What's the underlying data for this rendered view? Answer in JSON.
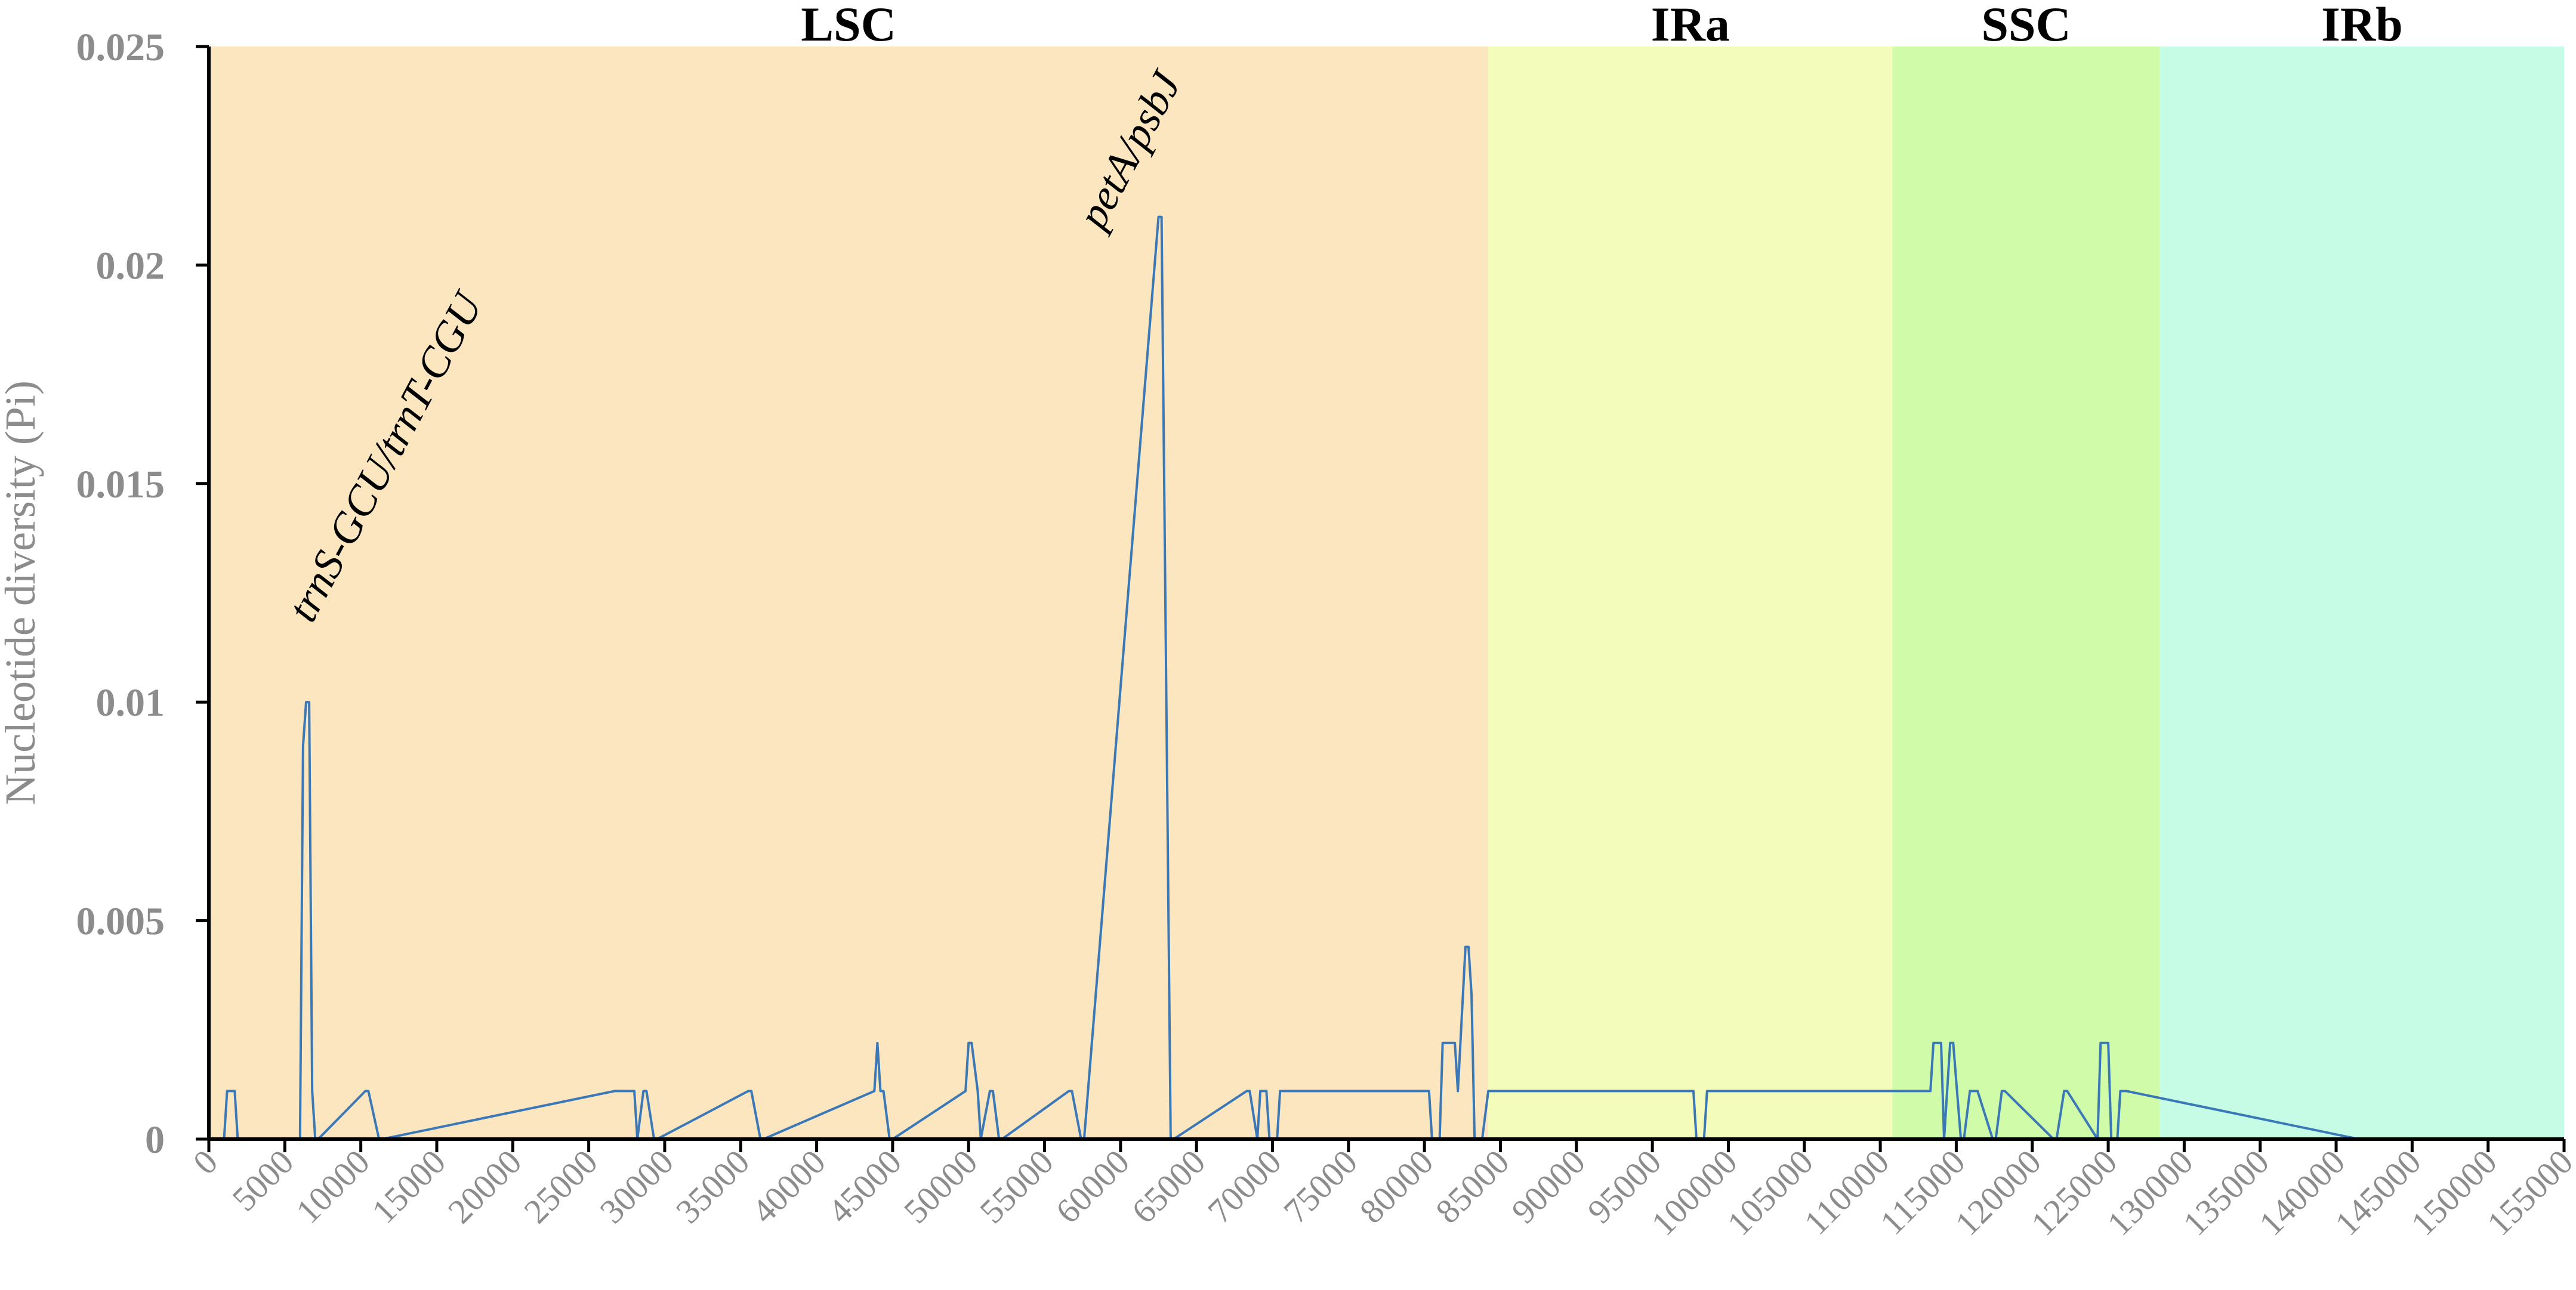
{
  "chart_data": {
    "type": "line",
    "title": "",
    "xlabel": "",
    "ylabel": "Nucleotide diversity (Pi)",
    "xlim": [
      0,
      155000
    ],
    "ylim": [
      0,
      0.025
    ],
    "x_ticks": [
      0,
      5000,
      10000,
      15000,
      20000,
      25000,
      30000,
      35000,
      40000,
      45000,
      50000,
      55000,
      60000,
      65000,
      70000,
      75000,
      80000,
      85000,
      90000,
      95000,
      100000,
      105000,
      110000,
      115000,
      120000,
      125000,
      130000,
      135000,
      140000,
      145000,
      150000,
      155000
    ],
    "y_ticks": [
      0,
      0.005,
      0.01,
      0.015,
      0.02,
      0.025
    ],
    "y_tick_labels": [
      "0",
      "0.005",
      "0.01",
      "0.015",
      "0.02",
      "0.025"
    ],
    "grid": false,
    "regions": [
      {
        "label": "LSC",
        "start": 0,
        "end": 84200,
        "color": "#fce6c0"
      },
      {
        "label": "IRa",
        "start": 84200,
        "end": 110800,
        "color": "#f3fcba"
      },
      {
        "label": "SSC",
        "start": 110800,
        "end": 128400,
        "color": "#d0fcaa"
      },
      {
        "label": "IRb",
        "start": 128400,
        "end": 155000,
        "color": "#c6fce6"
      }
    ],
    "annotations": [
      {
        "text": "trnS-GCU/trnT-CGU",
        "x": 6000,
        "y": 0.0115
      },
      {
        "text": "petA/psbJ",
        "x": 58000,
        "y": 0.0205
      }
    ],
    "series": [
      {
        "color": "#3a78b8",
        "x": [
          0,
          1000,
          1200,
          1700,
          1900,
          6000,
          6200,
          6400,
          6600,
          6800,
          7000,
          7200,
          10300,
          10500,
          11200,
          11400,
          26700,
          26900,
          28000,
          28200,
          28600,
          28800,
          29300,
          29500,
          35500,
          35700,
          36300,
          36500,
          43800,
          44000,
          44200,
          44400,
          44800,
          45000,
          49800,
          50000,
          50200,
          50600,
          50800,
          51400,
          51600,
          52000,
          52200,
          56600,
          56800,
          57400,
          57600,
          62500,
          62700,
          63300,
          63500,
          68300,
          68500,
          69000,
          69200,
          69600,
          69800,
          70300,
          70500,
          80300,
          80500,
          81000,
          81200,
          82000,
          82200,
          82700,
          82900,
          83100,
          83300,
          83600,
          83800,
          84200,
          97700,
          97900,
          98400,
          98600,
          113300,
          113500,
          114000,
          114200,
          114600,
          114800,
          115300,
          115500,
          115900,
          116400,
          117400,
          117600,
          118000,
          118200,
          121400,
          121600,
          122100,
          122300,
          124300,
          124500,
          125000,
          125200,
          125600,
          125800,
          126200,
          141500,
          141700,
          142300,
          142500,
          155000
        ],
        "y": [
          0,
          0,
          0.0011,
          0.0011,
          0,
          0,
          0.009,
          0.01,
          0.01,
          0.0011,
          0,
          0,
          0.0011,
          0.0011,
          0,
          0,
          0.0011,
          0.0011,
          0.0011,
          0,
          0.0011,
          0.0011,
          0,
          0,
          0.0011,
          0.0011,
          0,
          0,
          0.0011,
          0.0022,
          0.0011,
          0.0011,
          0,
          0,
          0.0011,
          0.0022,
          0.0022,
          0.0011,
          0,
          0.0011,
          0.0011,
          0,
          0,
          0.0011,
          0.0011,
          0,
          0,
          0.0211,
          0.0211,
          0,
          0,
          0.0011,
          0.0011,
          0,
          0.0011,
          0.0011,
          0,
          0,
          0.0011,
          0.0011,
          0,
          0,
          0.0022,
          0.0022,
          0.0011,
          0.0044,
          0.0044,
          0.0033,
          0,
          0,
          0,
          0.0011,
          0.0011,
          0,
          0,
          0.0011,
          0.0011,
          0.0022,
          0.0022,
          0,
          0.0022,
          0.0022,
          0,
          0,
          0.0011,
          0.0011,
          0,
          0,
          0.0011,
          0.0011,
          0,
          0,
          0.0011,
          0.0011,
          0,
          0.0022,
          0.0022,
          0,
          0,
          0.0011,
          0.0011,
          0,
          0,
          0,
          0,
          0
        ]
      }
    ]
  }
}
